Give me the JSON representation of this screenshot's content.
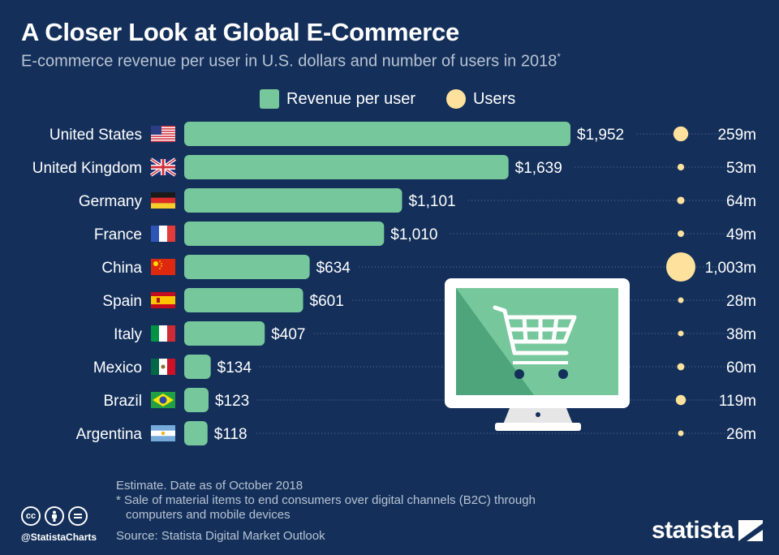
{
  "header": {
    "title": "A Closer Look at Global E-Commerce",
    "subtitle": "E-commerce revenue per user in U.S. dollars and number of users in 2018",
    "subtitle_mark": "*"
  },
  "legend": {
    "bar_label": "Revenue per user",
    "dot_label": "Users"
  },
  "colors": {
    "background": "#14305a",
    "bar": "#77c79c",
    "dot": "#fde19c",
    "text_muted": "#b8c3d3"
  },
  "chart_data": {
    "type": "bar",
    "orientation": "horizontal",
    "title": "A Closer Look at Global E-Commerce",
    "subtitle": "E-commerce revenue per user in U.S. dollars and number of users in 2018*",
    "categories": [
      "United States",
      "United Kingdom",
      "Germany",
      "France",
      "China",
      "Spain",
      "Italy",
      "Mexico",
      "Brazil",
      "Argentina"
    ],
    "flags": [
      "us-flag-icon",
      "uk-flag-icon",
      "germany-flag-icon",
      "france-flag-icon",
      "china-flag-icon",
      "spain-flag-icon",
      "italy-flag-icon",
      "mexico-flag-icon",
      "brazil-flag-icon",
      "argentina-flag-icon"
    ],
    "series": [
      {
        "name": "Revenue per user",
        "values": [
          1952,
          1639,
          1101,
          1010,
          634,
          601,
          407,
          134,
          123,
          118
        ],
        "labels": [
          "$1,952",
          "$1,639",
          "$1,101",
          "$1,010",
          "$634",
          "$601",
          "$407",
          "$134",
          "$123",
          "$118"
        ]
      },
      {
        "name": "Users",
        "values": [
          259,
          53,
          64,
          49,
          1003,
          28,
          38,
          60,
          119,
          26
        ],
        "labels": [
          "259m",
          "53m",
          "64m",
          "49m",
          "1,003m",
          "28m",
          "38m",
          "60m",
          "119m",
          "26m"
        ]
      }
    ]
  },
  "footer": {
    "note1": "Estimate. Date as of October 2018",
    "note2": "* Sale of material items to end consumers over digital channels (B2C) through",
    "note3": "computers and mobile devices",
    "source": "Source: Statista Digital Market Outlook",
    "handle": "@StatistaCharts",
    "brand": "statista",
    "license_icons": [
      "cc-icon",
      "attribution-icon",
      "no-derivatives-icon"
    ]
  }
}
